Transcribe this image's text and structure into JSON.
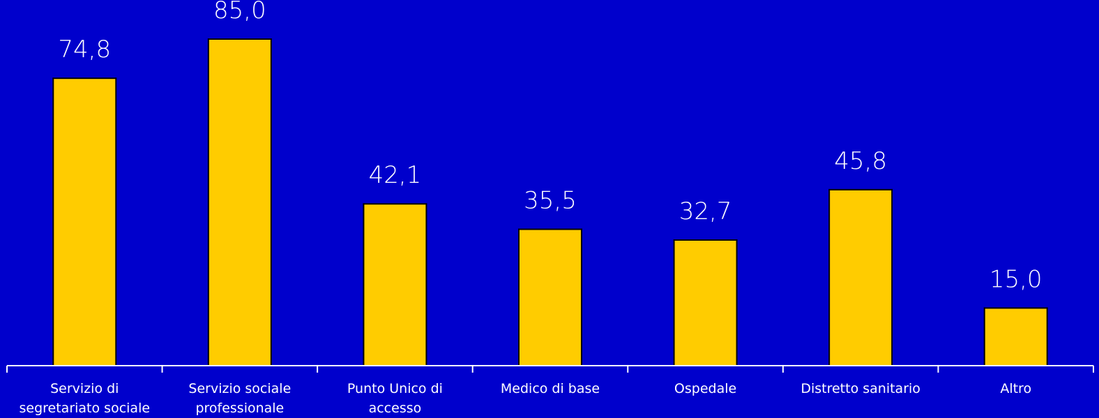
{
  "colors": {
    "background": "#0000CC",
    "bar_fill": "#FFCC00",
    "bar_stroke": "#000000",
    "axis": "#FFFFFF",
    "text": "#FFFFFF"
  },
  "chart_data": {
    "type": "bar",
    "categories": [
      [
        "Servizio di",
        "segretariato sociale"
      ],
      [
        "Servizio sociale",
        "professionale"
      ],
      [
        "Punto Unico di",
        "accesso"
      ],
      [
        "Medico di base"
      ],
      [
        "Ospedale"
      ],
      [
        "Distretto sanitario"
      ],
      [
        "Altro"
      ]
    ],
    "values": [
      74.8,
      85.0,
      42.1,
      35.5,
      32.7,
      45.8,
      15.0
    ],
    "value_labels": [
      "74,8",
      "85,0",
      "42,1",
      "35,5",
      "32,7",
      "45,8",
      "15,0"
    ],
    "ylim": [
      0,
      100
    ],
    "grid": false,
    "legend": "none"
  }
}
